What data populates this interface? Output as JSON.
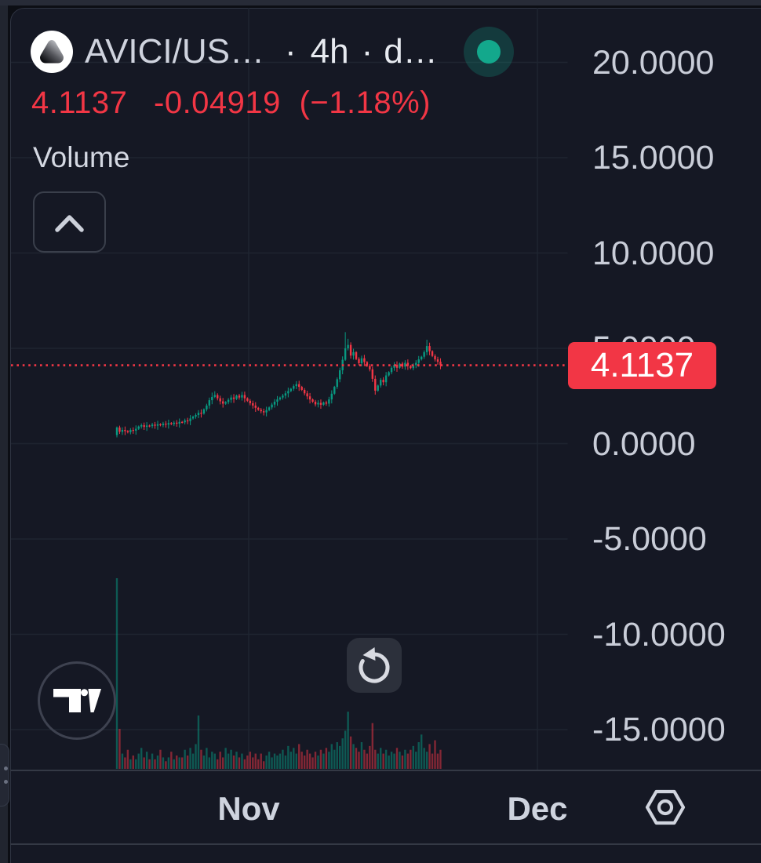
{
  "header": {
    "symbol": "AVICI/US…",
    "sep1": "·",
    "interval": "4h",
    "sep2": "·",
    "style": "d…"
  },
  "quote": {
    "price": "4.1137",
    "change": "-0.04919",
    "change_pct": "(−1.18%)",
    "color": "#f23645"
  },
  "indicator": {
    "label": "Volume"
  },
  "y_axis": {
    "labels": [
      "20.0000",
      "15.0000",
      "10.0000",
      "5.0000",
      "0.0000",
      "-5.0000",
      "-10.0000",
      "-15.0000"
    ],
    "values": [
      20,
      15,
      10,
      5,
      0,
      -5,
      -10,
      -15
    ]
  },
  "price_tag": {
    "text": "4.1137",
    "value": 4.1137,
    "color": "#f23645"
  },
  "x_axis": {
    "labels": [
      {
        "text": "Nov",
        "x": 317
      },
      {
        "text": "Dec",
        "x": 685
      }
    ]
  },
  "colors": {
    "up": "#089981",
    "down": "#f23645",
    "vol_up": "rgba(8,153,129,0.5)",
    "vol_down": "rgba(242,54,69,0.5)",
    "grid": "#1f2430",
    "background": "#151824"
  },
  "chart_data": {
    "type": "candlestick+volume",
    "symbol": "AVICI/US…",
    "interval": "4h",
    "x_ticks": [
      "Nov",
      "Dec"
    ],
    "y_range": [
      -17.5,
      22.5
    ],
    "last_price": 4.1137,
    "first_open": 0.45,
    "closes": [
      0.85,
      0.62,
      0.72,
      0.66,
      0.6,
      0.72,
      0.68,
      0.78,
      0.9,
      0.97,
      0.88,
      0.95,
      0.92,
      1.0,
      0.94,
      1.02,
      0.97,
      1.05,
      1.0,
      1.08,
      1.03,
      1.1,
      1.05,
      1.14,
      1.12,
      1.22,
      1.18,
      1.32,
      1.42,
      1.5,
      1.62,
      1.58,
      1.8,
      2.0,
      2.28,
      2.45,
      2.55,
      2.38,
      2.22,
      2.1,
      2.18,
      2.3,
      2.42,
      2.35,
      2.52,
      2.42,
      2.55,
      2.38,
      2.25,
      2.12,
      2.0,
      1.88,
      1.78,
      1.7,
      1.64,
      1.76,
      1.9,
      2.05,
      2.2,
      2.32,
      2.42,
      2.52,
      2.64,
      2.76,
      2.88,
      3.02,
      3.12,
      2.98,
      2.82,
      2.64,
      2.48,
      2.32,
      2.2,
      2.06,
      2.14,
      2.04,
      2.16,
      2.1,
      2.32,
      2.62,
      2.98,
      3.38,
      3.85,
      4.4,
      5.0,
      5.18,
      4.62,
      4.8,
      4.44,
      4.22,
      4.48,
      4.28,
      4.08,
      3.9,
      3.4,
      2.78,
      3.05,
      3.35,
      3.22,
      3.58,
      3.75,
      3.98,
      4.14,
      3.98,
      4.2,
      4.04,
      4.24,
      4.08,
      3.96,
      4.12,
      4.24,
      4.42,
      4.56,
      4.8,
      5.12,
      4.85,
      4.6,
      4.42,
      4.3,
      4.1137
    ],
    "volumes": [
      1.0,
      0.21,
      0.08,
      0.06,
      0.1,
      0.05,
      0.07,
      0.05,
      0.08,
      0.11,
      0.06,
      0.09,
      0.05,
      0.08,
      0.05,
      0.07,
      0.1,
      0.06,
      0.04,
      0.06,
      0.09,
      0.05,
      0.07,
      0.06,
      0.06,
      0.1,
      0.07,
      0.11,
      0.08,
      0.13,
      0.28,
      0.1,
      0.07,
      0.11,
      0.06,
      0.09,
      0.08,
      0.05,
      0.09,
      0.06,
      0.11,
      0.08,
      0.1,
      0.07,
      0.09,
      0.06,
      0.08,
      0.05,
      0.07,
      0.09,
      0.06,
      0.08,
      0.05,
      0.08,
      0.04,
      0.07,
      0.09,
      0.06,
      0.08,
      0.07,
      0.08,
      0.1,
      0.07,
      0.12,
      0.09,
      0.11,
      0.08,
      0.13,
      0.09,
      0.07,
      0.1,
      0.08,
      0.06,
      0.09,
      0.07,
      0.1,
      0.08,
      0.11,
      0.09,
      0.13,
      0.1,
      0.14,
      0.12,
      0.16,
      0.2,
      0.3,
      0.17,
      0.13,
      0.11,
      0.09,
      0.14,
      0.1,
      0.08,
      0.12,
      0.24,
      0.1,
      0.08,
      0.11,
      0.08,
      0.1,
      0.07,
      0.09,
      0.08,
      0.11,
      0.09,
      0.07,
      0.1,
      0.08,
      0.1,
      0.12,
      0.09,
      0.14,
      0.18,
      0.11,
      0.09,
      0.13,
      0.08,
      0.15,
      0.08,
      0.1
    ],
    "wick_overrides": {
      "0": {
        "l": 0.33
      },
      "35": {
        "h": 2.68
      },
      "36": {
        "h": 2.75
      },
      "46": {
        "h": 2.72
      },
      "66": {
        "h": 3.28
      },
      "84": {
        "h": 5.85
      },
      "85": {
        "h": 5.5
      },
      "114": {
        "h": 5.45
      }
    }
  }
}
